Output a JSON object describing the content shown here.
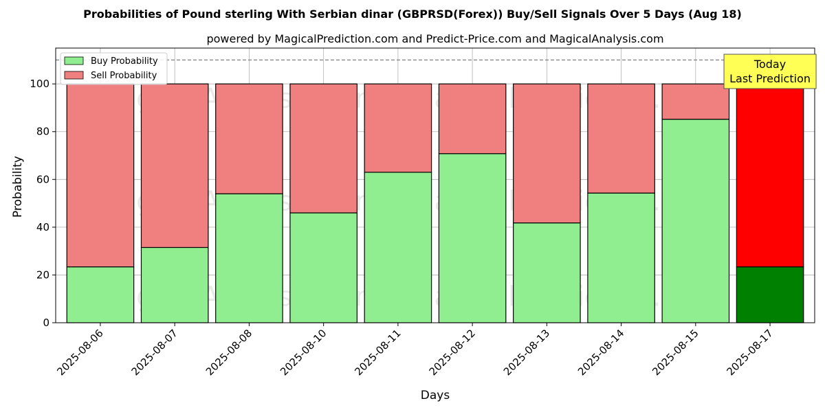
{
  "chart_data": {
    "type": "bar",
    "stacked": true,
    "title": "Probabilities of Pound sterling With Serbian dinar (GBPRSD(Forex)) Buy/Sell Signals Over 5 Days (Aug 18)",
    "subtitle": "powered by MagicalPrediction.com and Predict-Price.com and MagicalAnalysis.com",
    "xlabel": "Days",
    "ylabel": "Probability",
    "ylim": [
      0,
      115
    ],
    "yticks": [
      0,
      20,
      40,
      60,
      80,
      100
    ],
    "threshold_line": 110,
    "grid": true,
    "legend_placement": "top-left",
    "categories": [
      "2025-08-06",
      "2025-08-07",
      "2025-08-08",
      "2025-08-10",
      "2025-08-11",
      "2025-08-12",
      "2025-08-13",
      "2025-08-14",
      "2025-08-15",
      "2025-08-17"
    ],
    "series": [
      {
        "name": "Buy Probability",
        "values": [
          23.4,
          31.5,
          54.0,
          46.0,
          63.0,
          70.8,
          41.8,
          54.3,
          85.2,
          23.4
        ],
        "color": "#90ee90",
        "last_color": "#008000"
      },
      {
        "name": "Sell Probability",
        "values": [
          76.6,
          68.5,
          46.0,
          54.0,
          37.0,
          29.2,
          58.2,
          45.7,
          14.8,
          76.6
        ],
        "color": "#f08080",
        "last_color": "#ff0000"
      }
    ],
    "annotation": {
      "lines": [
        "Today",
        "Last Prediction"
      ],
      "bg_color": "#ffff55"
    },
    "watermarks": [
      "MagicalAnalysis.com",
      "MagicalPrediction.com"
    ]
  }
}
